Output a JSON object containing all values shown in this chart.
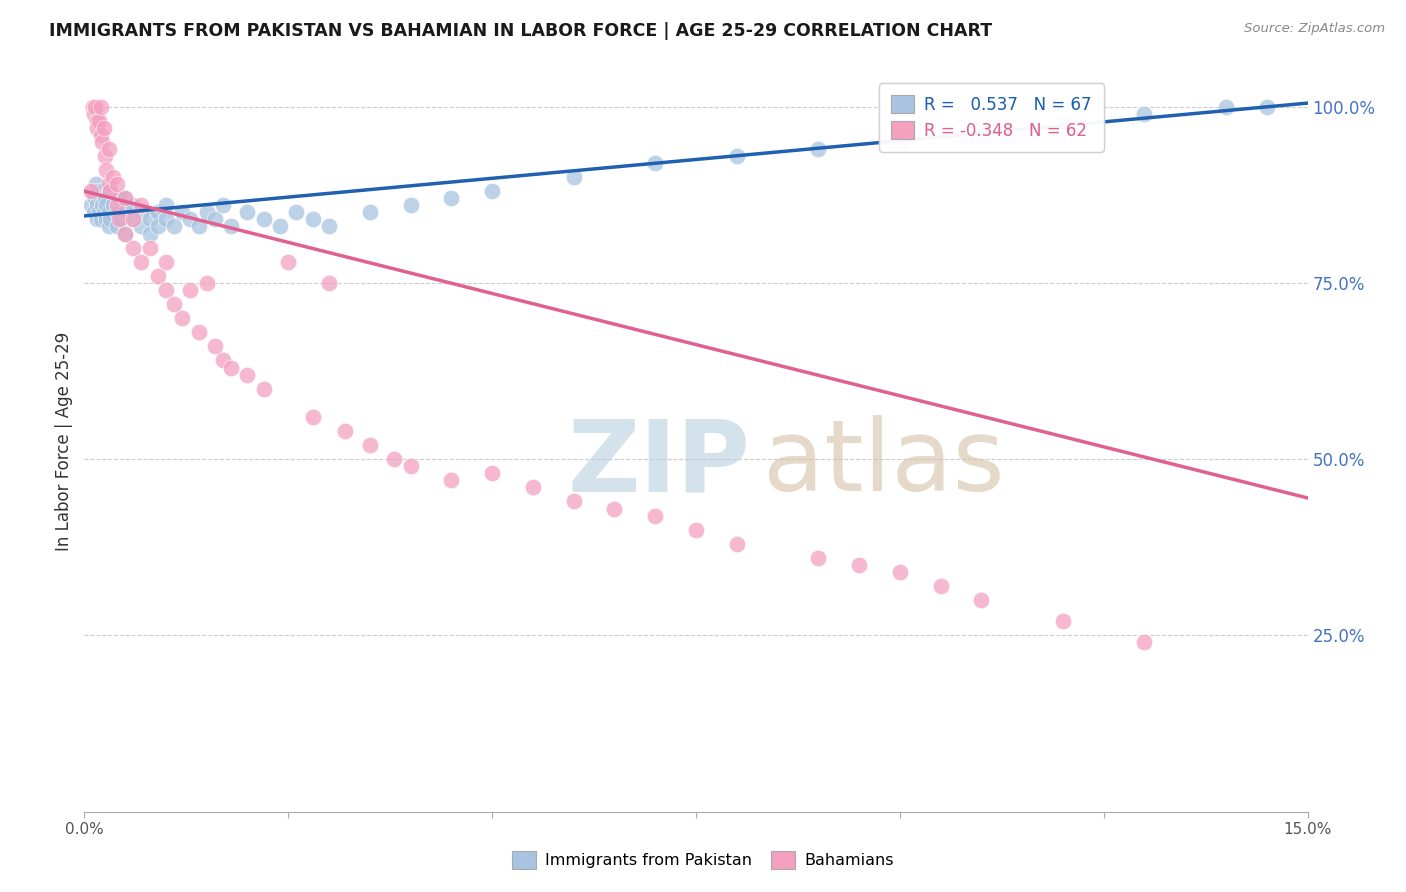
{
  "title": "IMMIGRANTS FROM PAKISTAN VS BAHAMIAN IN LABOR FORCE | AGE 25-29 CORRELATION CHART",
  "source": "Source: ZipAtlas.com",
  "ylabel": "In Labor Force | Age 25-29",
  "xmin": 0.0,
  "xmax": 0.15,
  "ymin": 0.0,
  "ymax": 1.05,
  "r_pakistan": 0.537,
  "n_pakistan": 67,
  "r_bahamian": -0.348,
  "n_bahamian": 62,
  "pakistan_color": "#a8c4e0",
  "bahamian_color": "#f4a0be",
  "pakistan_line_color": "#2060b0",
  "bahamian_line_color": "#e06090",
  "watermark_zip_color": "#c8d8ea",
  "watermark_atlas_color": "#d8c8b8",
  "pak_x": [
    0.0008,
    0.001,
    0.0012,
    0.0013,
    0.0014,
    0.0015,
    0.0016,
    0.0017,
    0.0018,
    0.002,
    0.002,
    0.0022,
    0.0023,
    0.0024,
    0.0025,
    0.0026,
    0.0027,
    0.003,
    0.003,
    0.003,
    0.0032,
    0.0035,
    0.004,
    0.004,
    0.0042,
    0.0045,
    0.005,
    0.005,
    0.005,
    0.006,
    0.006,
    0.007,
    0.007,
    0.008,
    0.008,
    0.009,
    0.009,
    0.01,
    0.01,
    0.011,
    0.012,
    0.013,
    0.014,
    0.015,
    0.016,
    0.017,
    0.018,
    0.02,
    0.022,
    0.024,
    0.026,
    0.028,
    0.03,
    0.035,
    0.04,
    0.045,
    0.05,
    0.06,
    0.07,
    0.08,
    0.09,
    0.1,
    0.11,
    0.12,
    0.13,
    0.14,
    0.145
  ],
  "pak_y": [
    0.86,
    0.88,
    0.85,
    0.87,
    0.89,
    0.84,
    0.86,
    0.88,
    0.85,
    0.84,
    0.87,
    0.86,
    0.88,
    0.85,
    0.87,
    0.84,
    0.86,
    0.83,
    0.85,
    0.88,
    0.84,
    0.86,
    0.85,
    0.83,
    0.87,
    0.84,
    0.82,
    0.85,
    0.87,
    0.84,
    0.86,
    0.83,
    0.85,
    0.84,
    0.82,
    0.85,
    0.83,
    0.84,
    0.86,
    0.83,
    0.85,
    0.84,
    0.83,
    0.85,
    0.84,
    0.86,
    0.83,
    0.85,
    0.84,
    0.83,
    0.85,
    0.84,
    0.83,
    0.85,
    0.86,
    0.87,
    0.88,
    0.9,
    0.92,
    0.93,
    0.94,
    0.95,
    0.97,
    0.98,
    0.99,
    1.0,
    1.0
  ],
  "bah_x": [
    0.0008,
    0.001,
    0.0012,
    0.0013,
    0.0015,
    0.0016,
    0.0018,
    0.002,
    0.002,
    0.0022,
    0.0024,
    0.0025,
    0.0027,
    0.003,
    0.003,
    0.0032,
    0.0035,
    0.004,
    0.004,
    0.0042,
    0.005,
    0.005,
    0.006,
    0.006,
    0.007,
    0.007,
    0.008,
    0.009,
    0.01,
    0.01,
    0.011,
    0.012,
    0.013,
    0.014,
    0.015,
    0.016,
    0.017,
    0.018,
    0.02,
    0.022,
    0.025,
    0.028,
    0.03,
    0.032,
    0.035,
    0.038,
    0.04,
    0.045,
    0.05,
    0.055,
    0.06,
    0.065,
    0.07,
    0.075,
    0.08,
    0.09,
    0.095,
    0.1,
    0.105,
    0.11,
    0.12,
    0.13
  ],
  "bah_y": [
    0.88,
    1.0,
    0.99,
    1.0,
    0.98,
    0.97,
    0.98,
    0.96,
    1.0,
    0.95,
    0.97,
    0.93,
    0.91,
    0.89,
    0.94,
    0.88,
    0.9,
    0.86,
    0.89,
    0.84,
    0.87,
    0.82,
    0.84,
    0.8,
    0.86,
    0.78,
    0.8,
    0.76,
    0.78,
    0.74,
    0.72,
    0.7,
    0.74,
    0.68,
    0.75,
    0.66,
    0.64,
    0.63,
    0.62,
    0.6,
    0.78,
    0.56,
    0.75,
    0.54,
    0.52,
    0.5,
    0.49,
    0.47,
    0.48,
    0.46,
    0.44,
    0.43,
    0.42,
    0.4,
    0.38,
    0.36,
    0.35,
    0.34,
    0.32,
    0.3,
    0.27,
    0.24
  ],
  "pak_trendline_x0": 0.0,
  "pak_trendline_x1": 0.15,
  "pak_trendline_y0": 0.845,
  "pak_trendline_y1": 1.005,
  "bah_trendline_x0": 0.0,
  "bah_trendline_x1": 0.15,
  "bah_trendline_y0": 0.88,
  "bah_trendline_y1": 0.445
}
